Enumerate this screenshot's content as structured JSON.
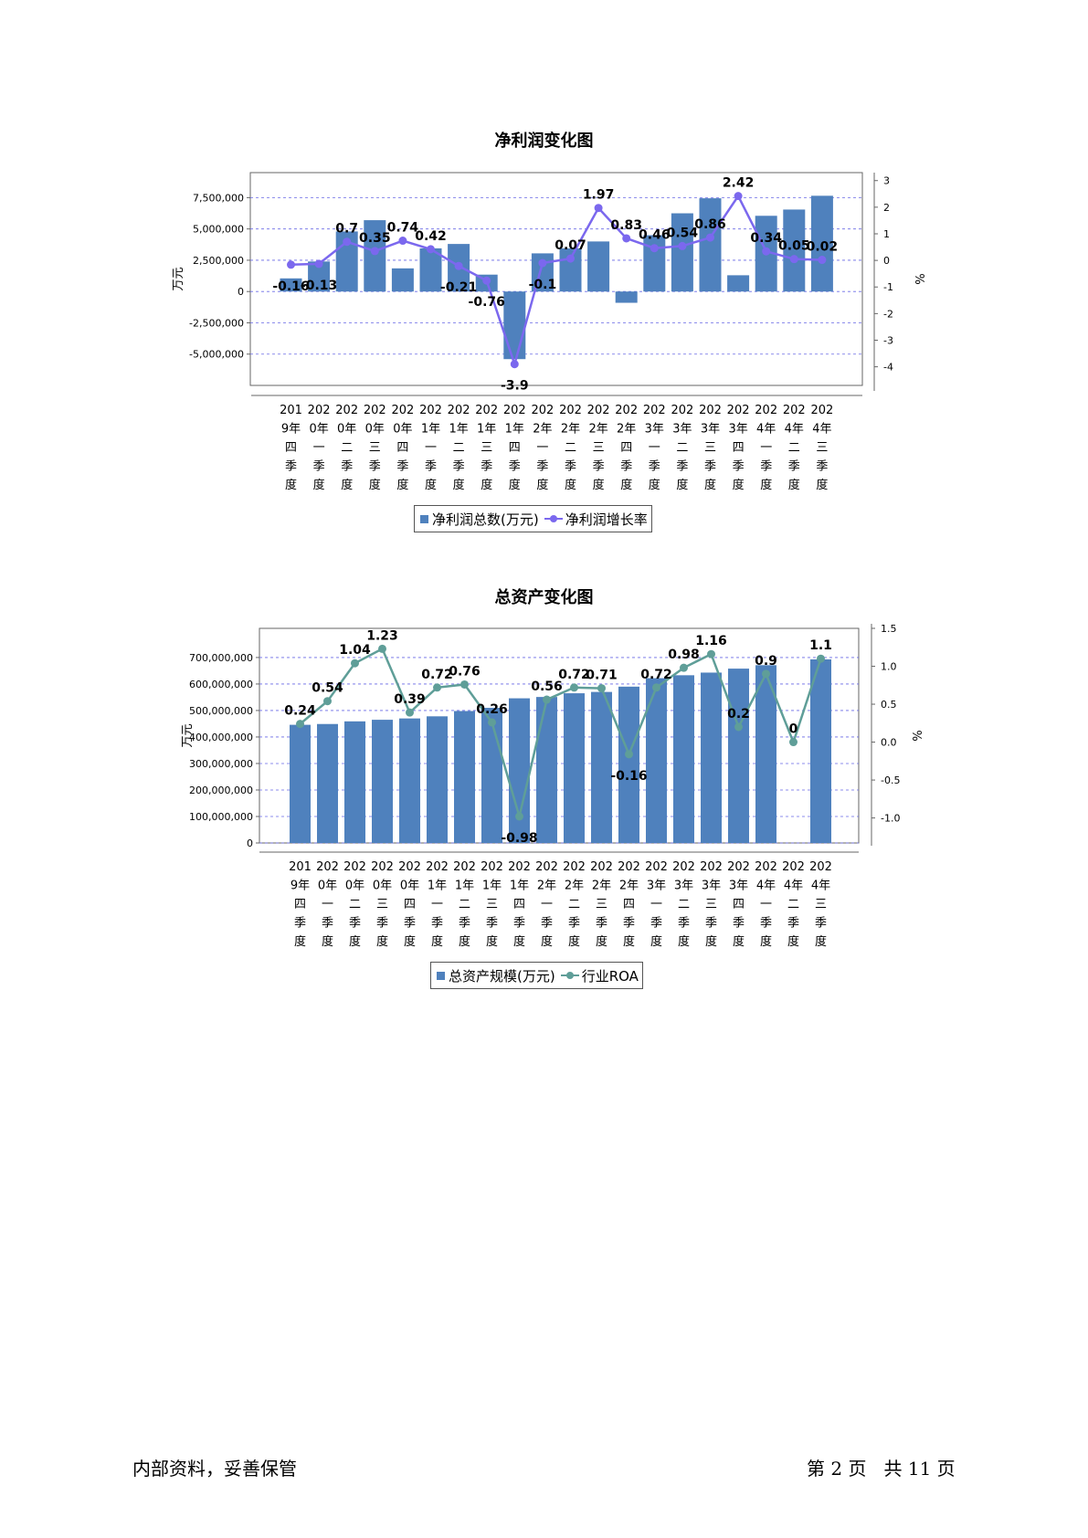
{
  "footer": {
    "left_text": "内部资料，妥善保管",
    "page_text": "第 2 页   共 11 页"
  },
  "colors": {
    "bar": "#4f81bd",
    "line1": "#7b68ee",
    "line2": "#5f9e98",
    "grid": "#6a6ae6"
  },
  "chart_data": [
    {
      "type": "bar",
      "title": "净利润变化图",
      "ylabel": "万元",
      "y2label": "%",
      "ylim": [
        -7500000,
        9500000
      ],
      "y2lim": [
        -4.7,
        3.3
      ],
      "yticks": [
        -5000000,
        -2500000,
        0,
        2500000,
        5000000,
        7500000
      ],
      "ytick_labels": [
        "-5,000,000",
        "-2,500,000",
        "0",
        "2,500,000",
        "5,000,000",
        "7,500,000"
      ],
      "y2ticks": [
        -4,
        -3,
        -2,
        -1,
        0,
        1,
        2,
        3
      ],
      "y2tick_labels": [
        "-4",
        "-3",
        "-2",
        "-1",
        "0",
        "1",
        "2",
        "3"
      ],
      "categories": [
        "2019年四季度",
        "2020年一季度",
        "2020年二季度",
        "2020年三季度",
        "2020年四季度",
        "2021年一季度",
        "2021年二季度",
        "2021年三季度",
        "2021年四季度",
        "2022年一季度",
        "2022年二季度",
        "2022年三季度",
        "2022年四季度",
        "2023年一季度",
        "2023年二季度",
        "2023年三季度",
        "2023年四季度",
        "2024年一季度",
        "2024年二季度",
        "2024年三季度"
      ],
      "cat_lines": [
        [
          "201",
          "9年",
          "四",
          "季",
          "度"
        ],
        [
          "202",
          "0年",
          "一",
          "季",
          "度"
        ],
        [
          "202",
          "0年",
          "二",
          "季",
          "度"
        ],
        [
          "202",
          "0年",
          "三",
          "季",
          "度"
        ],
        [
          "202",
          "0年",
          "四",
          "季",
          "度"
        ],
        [
          "202",
          "1年",
          "一",
          "季",
          "度"
        ],
        [
          "202",
          "1年",
          "二",
          "季",
          "度"
        ],
        [
          "202",
          "1年",
          "三",
          "季",
          "度"
        ],
        [
          "202",
          "1年",
          "四",
          "季",
          "度"
        ],
        [
          "202",
          "2年",
          "一",
          "季",
          "度"
        ],
        [
          "202",
          "2年",
          "二",
          "季",
          "度"
        ],
        [
          "202",
          "2年",
          "三",
          "季",
          "度"
        ],
        [
          "202",
          "2年",
          "四",
          "季",
          "度"
        ],
        [
          "202",
          "3年",
          "一",
          "季",
          "度"
        ],
        [
          "202",
          "3年",
          "二",
          "季",
          "度"
        ],
        [
          "202",
          "3年",
          "三",
          "季",
          "度"
        ],
        [
          "202",
          "3年",
          "四",
          "季",
          "度"
        ],
        [
          "202",
          "4年",
          "一",
          "季",
          "度"
        ],
        [
          "202",
          "4年",
          "二",
          "季",
          "度"
        ],
        [
          "202",
          "4年",
          "三",
          "季",
          "度"
        ]
      ],
      "series": [
        {
          "name": "净利润总数(万元)",
          "type": "bar",
          "values": [
            1050000,
            2400000,
            4800000,
            5700000,
            1850000,
            3450000,
            3800000,
            1350000,
            -5400000,
            3050000,
            3450000,
            4000000,
            -900000,
            4500000,
            6250000,
            7450000,
            1300000,
            6050000,
            6550000,
            7650000
          ]
        },
        {
          "name": "净利润增长率",
          "type": "line",
          "axis": "right",
          "values": [
            -0.16,
            -0.13,
            0.7,
            0.35,
            0.74,
            0.42,
            -0.21,
            -0.76,
            -3.9,
            -0.1,
            0.07,
            1.97,
            0.83,
            0.46,
            0.54,
            0.86,
            2.42,
            0.34,
            0.05,
            0.02
          ],
          "labels": [
            "-0.16",
            "-0.13",
            "0.7",
            "0.35",
            "0.74",
            "0.42",
            "-0.21",
            "-0.76",
            "-3.9",
            "-0.1",
            "0.07",
            "1.97",
            "0.83",
            "0.46",
            "0.54",
            "0.86",
            "2.42",
            "0.34",
            "0.05",
            "0.02"
          ]
        }
      ],
      "grid": true,
      "legend_position": "bottom-center"
    },
    {
      "type": "bar",
      "title": "总资产变化图",
      "ylabel": "万元",
      "y2label": "%",
      "ylim": [
        0,
        810000000
      ],
      "y2lim": [
        -1.33,
        1.5
      ],
      "yticks": [
        0,
        100000000,
        200000000,
        300000000,
        400000000,
        500000000,
        600000000,
        700000000
      ],
      "ytick_labels": [
        "0",
        "100,000,000",
        "200,000,000",
        "300,000,000",
        "400,000,000",
        "500,000,000",
        "600,000,000",
        "700,000,000"
      ],
      "y2ticks": [
        -1.0,
        -0.5,
        0.0,
        0.5,
        1.0,
        1.5
      ],
      "y2tick_labels": [
        "-1.0",
        "-0.5",
        "0.0",
        "0.5",
        "1.0",
        "1.5"
      ],
      "categories": [
        "2019年四季度",
        "2020年一季度",
        "2020年二季度",
        "2020年三季度",
        "2020年四季度",
        "2021年一季度",
        "2021年二季度",
        "2021年三季度",
        "2021年四季度",
        "2022年一季度",
        "2022年二季度",
        "2022年三季度",
        "2022年四季度",
        "2023年一季度",
        "2023年二季度",
        "2023年三季度",
        "2023年四季度",
        "2024年一季度",
        "2024年二季度",
        "2024年三季度"
      ],
      "cat_lines": [
        [
          "201",
          "9年",
          "四",
          "季",
          "度"
        ],
        [
          "202",
          "0年",
          "一",
          "季",
          "度"
        ],
        [
          "202",
          "0年",
          "二",
          "季",
          "度"
        ],
        [
          "202",
          "0年",
          "三",
          "季",
          "度"
        ],
        [
          "202",
          "0年",
          "四",
          "季",
          "度"
        ],
        [
          "202",
          "1年",
          "一",
          "季",
          "度"
        ],
        [
          "202",
          "1年",
          "二",
          "季",
          "度"
        ],
        [
          "202",
          "1年",
          "三",
          "季",
          "度"
        ],
        [
          "202",
          "1年",
          "四",
          "季",
          "度"
        ],
        [
          "202",
          "2年",
          "一",
          "季",
          "度"
        ],
        [
          "202",
          "2年",
          "二",
          "季",
          "度"
        ],
        [
          "202",
          "2年",
          "三",
          "季",
          "度"
        ],
        [
          "202",
          "2年",
          "四",
          "季",
          "度"
        ],
        [
          "202",
          "3年",
          "一",
          "季",
          "度"
        ],
        [
          "202",
          "3年",
          "二",
          "季",
          "度"
        ],
        [
          "202",
          "3年",
          "三",
          "季",
          "度"
        ],
        [
          "202",
          "3年",
          "四",
          "季",
          "度"
        ],
        [
          "202",
          "4年",
          "一",
          "季",
          "度"
        ],
        [
          "202",
          "4年",
          "二",
          "季",
          "度"
        ],
        [
          "202",
          "4年",
          "三",
          "季",
          "度"
        ]
      ],
      "series": [
        {
          "name": "总资产规模(万元)",
          "type": "bar",
          "values": [
            446000000,
            449000000,
            459000000,
            465000000,
            470000000,
            478000000,
            498000000,
            510000000,
            546000000,
            551000000,
            565000000,
            570000000,
            590000000,
            622000000,
            633000000,
            643000000,
            658000000,
            671000000,
            null,
            693000000
          ]
        },
        {
          "name": "行业ROA",
          "type": "line",
          "axis": "right",
          "values": [
            0.24,
            0.54,
            1.04,
            1.23,
            0.39,
            0.72,
            0.76,
            0.26,
            -0.98,
            0.56,
            0.72,
            0.71,
            -0.16,
            0.72,
            0.98,
            1.16,
            0.2,
            0.9,
            0,
            1.1
          ],
          "labels": [
            "0.24",
            "0.54",
            "1.04",
            "1.23",
            "0.39",
            "0.72",
            "0.76",
            "0.26",
            "-0.98",
            "0.56",
            "0.72",
            "0.71",
            "-0.16",
            "0.72",
            "0.98",
            "1.16",
            "0.2",
            "0.9",
            "0",
            "1.1"
          ]
        }
      ],
      "grid": true,
      "legend_position": "bottom-center"
    }
  ]
}
